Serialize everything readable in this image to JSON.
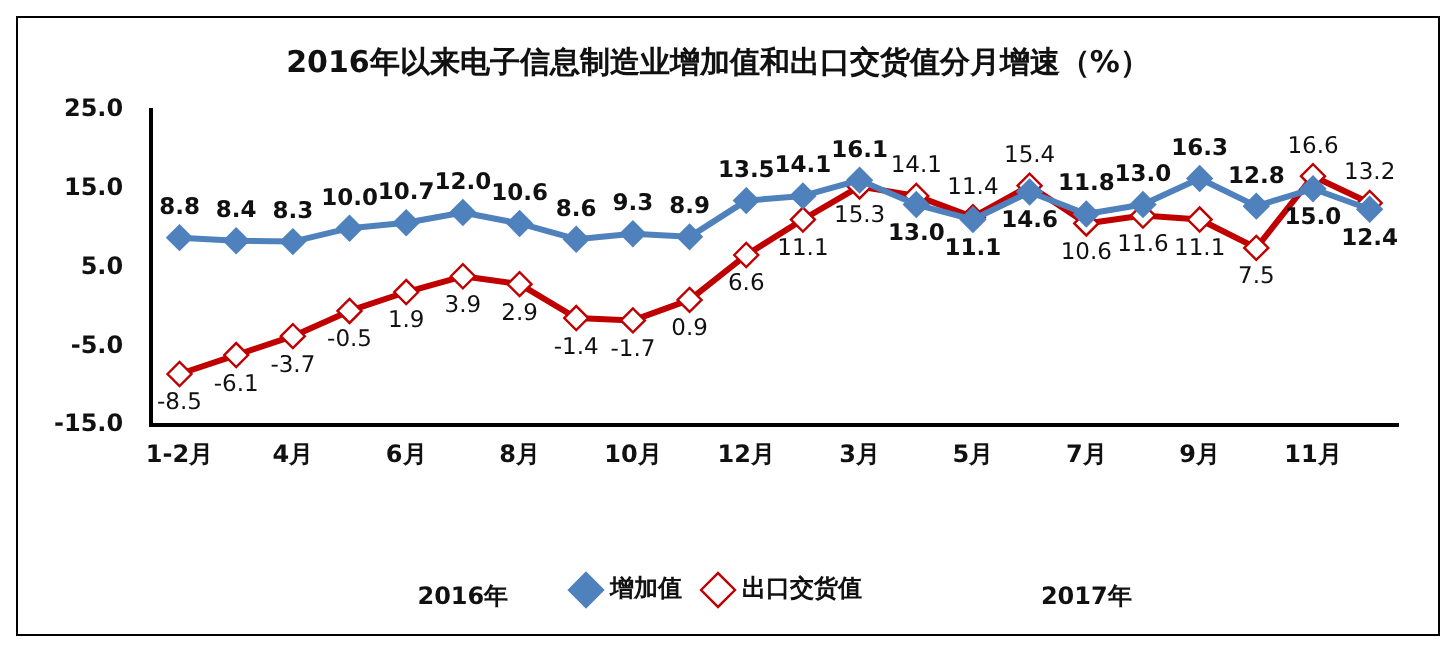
{
  "chart_data": {
    "type": "line",
    "title": "2016年以来电子信息制造业增加值和出口交货值分月增速（%）",
    "categories": [
      "1-2月",
      null,
      "4月",
      null,
      "6月",
      null,
      "8月",
      null,
      "10月",
      null,
      "12月",
      null,
      "3月",
      null,
      "5月",
      null,
      "7月",
      null,
      "9月",
      null,
      "11月",
      null
    ],
    "series": [
      {
        "name": "增加值",
        "color": "#4f81bd",
        "marker": "diamond",
        "values": [
          8.8,
          8.4,
          8.3,
          10.0,
          10.7,
          12.0,
          10.6,
          8.6,
          9.3,
          8.9,
          13.5,
          14.1,
          16.1,
          13.0,
          11.1,
          14.6,
          11.8,
          13.0,
          16.3,
          12.8,
          15.0,
          12.4
        ],
        "value_labels": [
          "8.8",
          "8.4",
          "8.3",
          "10.0",
          "10.7",
          "12.0",
          "10.6",
          "8.6",
          "9.3",
          "8.9",
          "13.5",
          "14.1",
          "16.1",
          "13.0",
          "11.1",
          "14.6",
          "11.8",
          "13.0",
          "16.3",
          "12.8",
          "15.0",
          "12.4"
        ]
      },
      {
        "name": "出口交货值",
        "color": "#c00000",
        "marker": "diamond",
        "values": [
          -8.5,
          -6.1,
          -3.7,
          -0.5,
          1.9,
          3.9,
          2.9,
          -1.4,
          -1.7,
          0.9,
          6.6,
          11.1,
          15.3,
          14.1,
          11.4,
          15.4,
          10.6,
          11.6,
          11.1,
          7.5,
          16.6,
          13.2
        ],
        "value_labels": [
          "-8.5",
          "-6.1",
          "-3.7",
          "-0.5",
          "1.9",
          "3.9",
          "2.9",
          "-1.4",
          "-1.7",
          "0.9",
          "6.6",
          "11.1",
          "15.3",
          "14.1",
          "11.4",
          "15.4",
          "10.6",
          "11.6",
          "11.1",
          "7.5",
          "16.6",
          "13.2"
        ]
      }
    ],
    "ylim": [
      -15,
      25
    ],
    "yticks": [
      {
        "value": -15,
        "label": "-15.0"
      },
      {
        "value": -5,
        "label": "-5.0"
      },
      {
        "value": 5,
        "label": "5.0"
      },
      {
        "value": 15,
        "label": "15.0"
      },
      {
        "value": 25,
        "label": "25.0"
      }
    ],
    "grid": false,
    "legend": "bottom",
    "annotations": [
      "2016年",
      "2017年"
    ]
  }
}
